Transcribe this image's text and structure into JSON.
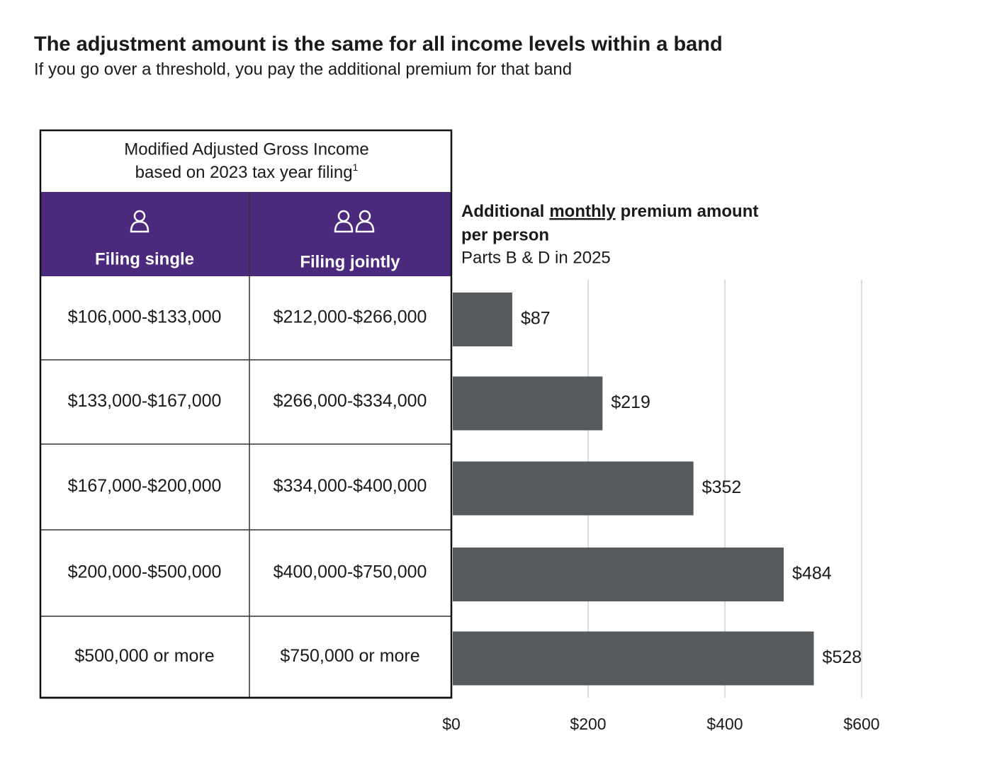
{
  "header": {
    "title": "The adjustment amount is the same for all income levels within a band",
    "subtitle": "If you go over a threshold, you pay the additional premium for that band"
  },
  "table": {
    "header_lines": [
      "Modified Adjusted Gross Income",
      "based on 2023 tax year filing"
    ],
    "footnote_mark": "1",
    "columns": [
      "Filing single",
      "Filing jointly"
    ],
    "rows": [
      [
        "$106,000-$133,000",
        "$212,000-$266,000"
      ],
      [
        "$133,000-$167,000",
        "$266,000-$334,000"
      ],
      [
        "$167,000-$200,000",
        "$334,000-$400,000"
      ],
      [
        "$200,000-$500,000",
        "$400,000-$750,000"
      ],
      [
        "$500,000 or more",
        "$750,000 or more"
      ]
    ]
  },
  "chart_data": {
    "type": "bar",
    "orientation": "horizontal",
    "title": [
      "Additional",
      "monthly",
      "premium amount",
      "per person"
    ],
    "subtitle": "Parts B & D in 2025",
    "values": [
      87,
      219,
      352,
      484,
      528
    ],
    "value_labels": [
      "$87",
      "$219",
      "$352",
      "$484",
      "$528"
    ],
    "color": "#575a5d",
    "xlim": [
      0,
      600
    ],
    "xticks": [
      {
        "value": 0,
        "label": "$0"
      },
      {
        "value": 200,
        "label": "$200"
      },
      {
        "value": 400,
        "label": "$400"
      },
      {
        "value": 600,
        "label": "$600"
      }
    ],
    "grid": true
  }
}
